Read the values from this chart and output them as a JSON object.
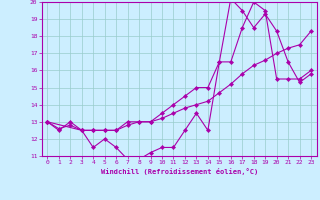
{
  "xlabel": "Windchill (Refroidissement éolien,°C)",
  "bg_color": "#cceeff",
  "grid_color": "#99cccc",
  "line_color": "#aa00aa",
  "spine_color": "#aa00aa",
  "xlim": [
    -0.5,
    23.5
  ],
  "ylim": [
    11,
    20
  ],
  "xticks": [
    0,
    1,
    2,
    3,
    4,
    5,
    6,
    7,
    8,
    9,
    10,
    11,
    12,
    13,
    14,
    15,
    16,
    17,
    18,
    19,
    20,
    21,
    22,
    23
  ],
  "yticks": [
    11,
    12,
    13,
    14,
    15,
    16,
    17,
    18,
    19,
    20
  ],
  "series": [
    {
      "x": [
        0,
        1,
        2,
        3,
        4,
        5,
        6,
        7,
        8,
        9,
        10,
        11,
        12,
        13,
        14,
        15,
        16,
        17,
        18,
        19,
        20,
        21,
        22,
        23
      ],
      "y": [
        13,
        12.5,
        13,
        12.5,
        11.5,
        12,
        11.5,
        10.8,
        10.8,
        11.2,
        11.5,
        11.5,
        12.5,
        13.5,
        12.5,
        16.5,
        16.5,
        18.5,
        20.0,
        19.5,
        15.5,
        15.5,
        15.5,
        16.0
      ]
    },
    {
      "x": [
        0,
        1,
        2,
        3,
        4,
        5,
        6,
        7,
        8,
        9,
        10,
        11,
        12,
        13,
        14,
        15,
        16,
        17,
        18,
        19,
        20,
        21,
        22,
        23
      ],
      "y": [
        13,
        12.6,
        12.8,
        12.5,
        12.5,
        12.5,
        12.5,
        12.8,
        13,
        13.0,
        13.2,
        13.5,
        13.8,
        14.0,
        14.2,
        14.7,
        15.2,
        15.8,
        16.3,
        16.6,
        17.0,
        17.3,
        17.5,
        18.3
      ]
    },
    {
      "x": [
        0,
        3,
        4,
        5,
        6,
        7,
        8,
        9,
        10,
        11,
        12,
        13,
        14,
        15,
        16,
        17,
        18,
        19,
        20,
        21,
        22,
        23
      ],
      "y": [
        13,
        12.5,
        12.5,
        12.5,
        12.5,
        13.0,
        13.0,
        13.0,
        13.5,
        14.0,
        14.5,
        15.0,
        15.0,
        16.5,
        20.2,
        19.5,
        18.5,
        19.3,
        18.3,
        16.5,
        15.3,
        15.8
      ]
    }
  ]
}
